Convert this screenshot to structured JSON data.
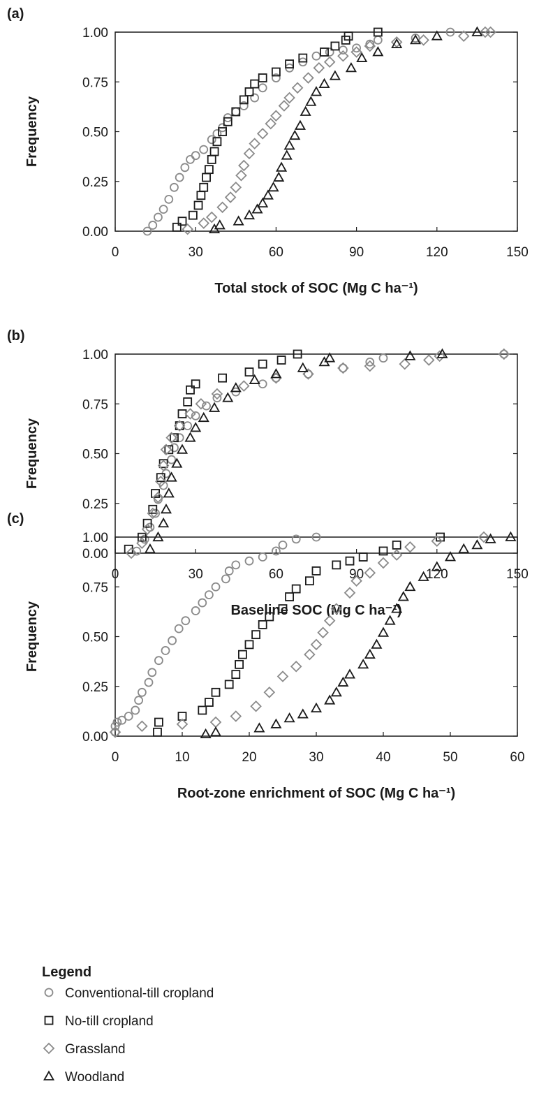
{
  "chart_data": [
    {
      "type": "scatter",
      "label": "(a)",
      "ylabel": "Frequency",
      "xlabel": "Total stock of SOC (Mg C ha⁻¹)",
      "xlim": [
        0,
        150
      ],
      "xticks": [
        0,
        30,
        60,
        90,
        120,
        150
      ],
      "ylim": [
        0,
        1
      ],
      "yticks": [
        {
          "value": 0,
          "label": "0.00"
        },
        {
          "value": 0.25,
          "label": "0.25"
        },
        {
          "value": 0.5,
          "label": "0.50"
        },
        {
          "value": 0.75,
          "label": "0.75"
        },
        {
          "value": 1,
          "label": "1.00"
        }
      ],
      "series": [
        {
          "name": "Conventional-till cropland",
          "color": "#8a8a8a",
          "marker": "circle",
          "x": [
            12,
            14,
            16,
            18,
            20,
            22,
            24,
            26,
            28,
            30,
            33,
            36,
            38,
            40,
            42,
            45,
            48,
            52,
            55,
            60,
            65,
            70,
            75,
            80,
            85,
            90,
            95,
            98,
            112,
            125
          ],
          "values": [
            0,
            0.03,
            0.07,
            0.11,
            0.16,
            0.22,
            0.27,
            0.32,
            0.36,
            0.38,
            0.41,
            0.46,
            0.49,
            0.52,
            0.57,
            0.6,
            0.63,
            0.67,
            0.72,
            0.77,
            0.82,
            0.85,
            0.88,
            0.9,
            0.91,
            0.92,
            0.94,
            0.96,
            0.97,
            1
          ]
        },
        {
          "name": "No-till cropland",
          "color": "#1a1a1a",
          "marker": "square",
          "x": [
            23,
            25,
            29,
            31,
            32,
            33,
            34,
            35,
            36,
            37,
            38,
            40,
            42,
            45,
            48,
            50,
            52,
            55,
            60,
            65,
            70,
            78,
            82,
            86,
            87,
            98
          ],
          "values": [
            0.02,
            0.05,
            0.08,
            0.13,
            0.18,
            0.22,
            0.27,
            0.31,
            0.36,
            0.4,
            0.45,
            0.5,
            0.55,
            0.6,
            0.66,
            0.7,
            0.74,
            0.77,
            0.8,
            0.84,
            0.87,
            0.9,
            0.93,
            0.96,
            0.98,
            1
          ]
        },
        {
          "name": "Grassland",
          "color": "#8a8a8a",
          "marker": "diamond",
          "x": [
            27,
            33,
            36,
            40,
            43,
            45,
            47,
            48,
            50,
            52,
            55,
            58,
            60,
            63,
            65,
            68,
            72,
            76,
            80,
            85,
            90,
            95,
            105,
            115,
            130,
            138,
            140
          ],
          "values": [
            0.01,
            0.04,
            0.07,
            0.12,
            0.17,
            0.22,
            0.28,
            0.33,
            0.39,
            0.44,
            0.49,
            0.54,
            0.58,
            0.63,
            0.67,
            0.72,
            0.77,
            0.82,
            0.85,
            0.88,
            0.9,
            0.93,
            0.95,
            0.96,
            0.98,
            1,
            1
          ]
        },
        {
          "name": "Woodland",
          "color": "#1a1a1a",
          "marker": "triangle",
          "x": [
            37,
            39,
            46,
            50,
            53,
            55,
            57,
            59,
            61,
            62,
            64,
            65,
            67,
            69,
            71,
            73,
            75,
            78,
            82,
            88,
            92,
            98,
            105,
            112,
            120,
            135
          ],
          "values": [
            0.01,
            0.03,
            0.05,
            0.08,
            0.11,
            0.14,
            0.18,
            0.22,
            0.27,
            0.32,
            0.38,
            0.43,
            0.48,
            0.53,
            0.6,
            0.65,
            0.7,
            0.74,
            0.78,
            0.82,
            0.87,
            0.9,
            0.94,
            0.96,
            0.98,
            1
          ]
        }
      ]
    },
    {
      "type": "scatter",
      "label": "(b)",
      "ylabel": "Frequency",
      "xlabel": "Baseline SOC (Mg C ha⁻¹)",
      "xlim": [
        0,
        150
      ],
      "xticks": [
        0,
        30,
        60,
        90,
        120,
        150
      ],
      "ylim": [
        0,
        1
      ],
      "yticks": [
        {
          "value": 0,
          "label": "0.00"
        },
        {
          "value": 0.25,
          "label": "0.25"
        },
        {
          "value": 0.5,
          "label": "0.50"
        },
        {
          "value": 0.75,
          "label": "0.75"
        },
        {
          "value": 1,
          "label": "1.00"
        }
      ],
      "series": [
        {
          "name": "Conventional-till cropland",
          "color": "#8a8a8a",
          "marker": "circle",
          "x": [
            8,
            11,
            13,
            15,
            16,
            18,
            19,
            21,
            22,
            24,
            27,
            30,
            34,
            38,
            45,
            55,
            60,
            72,
            85,
            95,
            100,
            145
          ],
          "values": [
            0.01,
            0.07,
            0.13,
            0.2,
            0.27,
            0.34,
            0.4,
            0.47,
            0.53,
            0.58,
            0.64,
            0.69,
            0.74,
            0.78,
            0.81,
            0.85,
            0.88,
            0.9,
            0.93,
            0.96,
            0.98,
            1
          ]
        },
        {
          "name": "No-till cropland",
          "color": "#1a1a1a",
          "marker": "square",
          "x": [
            5,
            10,
            12,
            14,
            15,
            17,
            18,
            20,
            22,
            24,
            25,
            27,
            28,
            30,
            40,
            50,
            55,
            62,
            68
          ],
          "values": [
            0.02,
            0.08,
            0.15,
            0.22,
            0.3,
            0.38,
            0.45,
            0.52,
            0.58,
            0.64,
            0.7,
            0.76,
            0.82,
            0.85,
            0.88,
            0.91,
            0.95,
            0.97,
            1
          ]
        },
        {
          "name": "Grassland",
          "color": "#8a8a8a",
          "marker": "diamond",
          "x": [
            6,
            10,
            12,
            14,
            16,
            17,
            18,
            19,
            21,
            24,
            28,
            32,
            38,
            48,
            60,
            72,
            85,
            95,
            108,
            117,
            121,
            145
          ],
          "values": [
            0,
            0.05,
            0.12,
            0.2,
            0.28,
            0.36,
            0.44,
            0.52,
            0.58,
            0.64,
            0.7,
            0.75,
            0.8,
            0.84,
            0.88,
            0.9,
            0.93,
            0.94,
            0.95,
            0.97,
            0.99,
            1
          ]
        },
        {
          "name": "Woodland",
          "color": "#1a1a1a",
          "marker": "triangle",
          "x": [
            13,
            16,
            18,
            19,
            20,
            21,
            23,
            25,
            28,
            30,
            33,
            37,
            42,
            45,
            52,
            60,
            70,
            78,
            80,
            110,
            122
          ],
          "values": [
            0.02,
            0.08,
            0.15,
            0.22,
            0.3,
            0.38,
            0.45,
            0.52,
            0.58,
            0.63,
            0.68,
            0.73,
            0.78,
            0.83,
            0.87,
            0.9,
            0.93,
            0.96,
            0.98,
            0.99,
            1
          ]
        }
      ]
    },
    {
      "type": "scatter",
      "label": "(c)",
      "ylabel": "Frequency",
      "xlabel": "Root-zone enrichment of SOC (Mg C ha⁻¹)",
      "xlim": [
        0,
        60
      ],
      "xticks": [
        0,
        10,
        20,
        30,
        40,
        50,
        60
      ],
      "ylim": [
        0,
        1
      ],
      "yticks": [
        {
          "value": 0,
          "label": "0.00"
        },
        {
          "value": 0.25,
          "label": "0.25"
        },
        {
          "value": 0.5,
          "label": "0.50"
        },
        {
          "value": 0.75,
          "label": "0.75"
        },
        {
          "value": 1,
          "label": "1.00"
        }
      ],
      "series": [
        {
          "name": "Conventional-till cropland",
          "color": "#8a8a8a",
          "marker": "circle",
          "x": [
            0,
            0,
            0.3,
            1,
            2,
            3,
            3.5,
            4,
            5,
            5.5,
            6.5,
            7.5,
            8.5,
            9.5,
            10.5,
            12,
            13,
            14,
            15,
            16.5,
            17,
            18,
            20,
            22,
            24,
            25,
            27,
            30
          ],
          "values": [
            0.02,
            0.05,
            0.07,
            0.08,
            0.1,
            0.13,
            0.18,
            0.22,
            0.27,
            0.32,
            0.38,
            0.43,
            0.48,
            0.54,
            0.58,
            0.63,
            0.67,
            0.71,
            0.75,
            0.79,
            0.83,
            0.86,
            0.88,
            0.9,
            0.93,
            0.96,
            0.99,
            1
          ]
        },
        {
          "name": "No-till cropland",
          "color": "#1a1a1a",
          "marker": "square",
          "x": [
            6.3,
            6.5,
            10,
            13,
            14,
            15,
            17,
            18,
            18.5,
            19,
            20,
            21,
            22,
            23,
            25,
            26,
            27,
            29,
            30,
            33,
            35,
            37,
            40,
            42,
            48.5
          ],
          "values": [
            0.02,
            0.07,
            0.1,
            0.13,
            0.17,
            0.22,
            0.26,
            0.31,
            0.36,
            0.41,
            0.46,
            0.51,
            0.56,
            0.6,
            0.64,
            0.7,
            0.74,
            0.78,
            0.83,
            0.86,
            0.88,
            0.9,
            0.93,
            0.96,
            1
          ]
        },
        {
          "name": "Grassland",
          "color": "#8a8a8a",
          "marker": "diamond",
          "x": [
            0,
            4,
            10,
            15,
            18,
            21,
            23,
            25,
            27,
            29,
            30,
            31,
            32,
            33,
            35,
            36,
            38,
            40,
            42,
            44,
            48,
            55
          ],
          "values": [
            0.02,
            0.05,
            0.06,
            0.07,
            0.1,
            0.15,
            0.22,
            0.3,
            0.35,
            0.41,
            0.46,
            0.52,
            0.58,
            0.64,
            0.72,
            0.78,
            0.82,
            0.87,
            0.91,
            0.95,
            0.98,
            1
          ]
        },
        {
          "name": "Woodland",
          "color": "#1a1a1a",
          "marker": "triangle",
          "x": [
            13.5,
            15,
            21.5,
            24,
            26,
            28,
            30,
            32,
            33,
            34,
            35,
            37,
            38,
            39,
            40,
            41,
            42,
            43,
            44,
            46,
            48,
            50,
            52,
            54,
            56,
            59
          ],
          "values": [
            0.01,
            0.02,
            0.04,
            0.06,
            0.09,
            0.11,
            0.14,
            0.18,
            0.22,
            0.27,
            0.31,
            0.36,
            0.41,
            0.46,
            0.52,
            0.58,
            0.64,
            0.7,
            0.75,
            0.8,
            0.85,
            0.9,
            0.94,
            0.96,
            0.99,
            1
          ]
        }
      ]
    }
  ],
  "legend": {
    "title": "Legend"
  }
}
